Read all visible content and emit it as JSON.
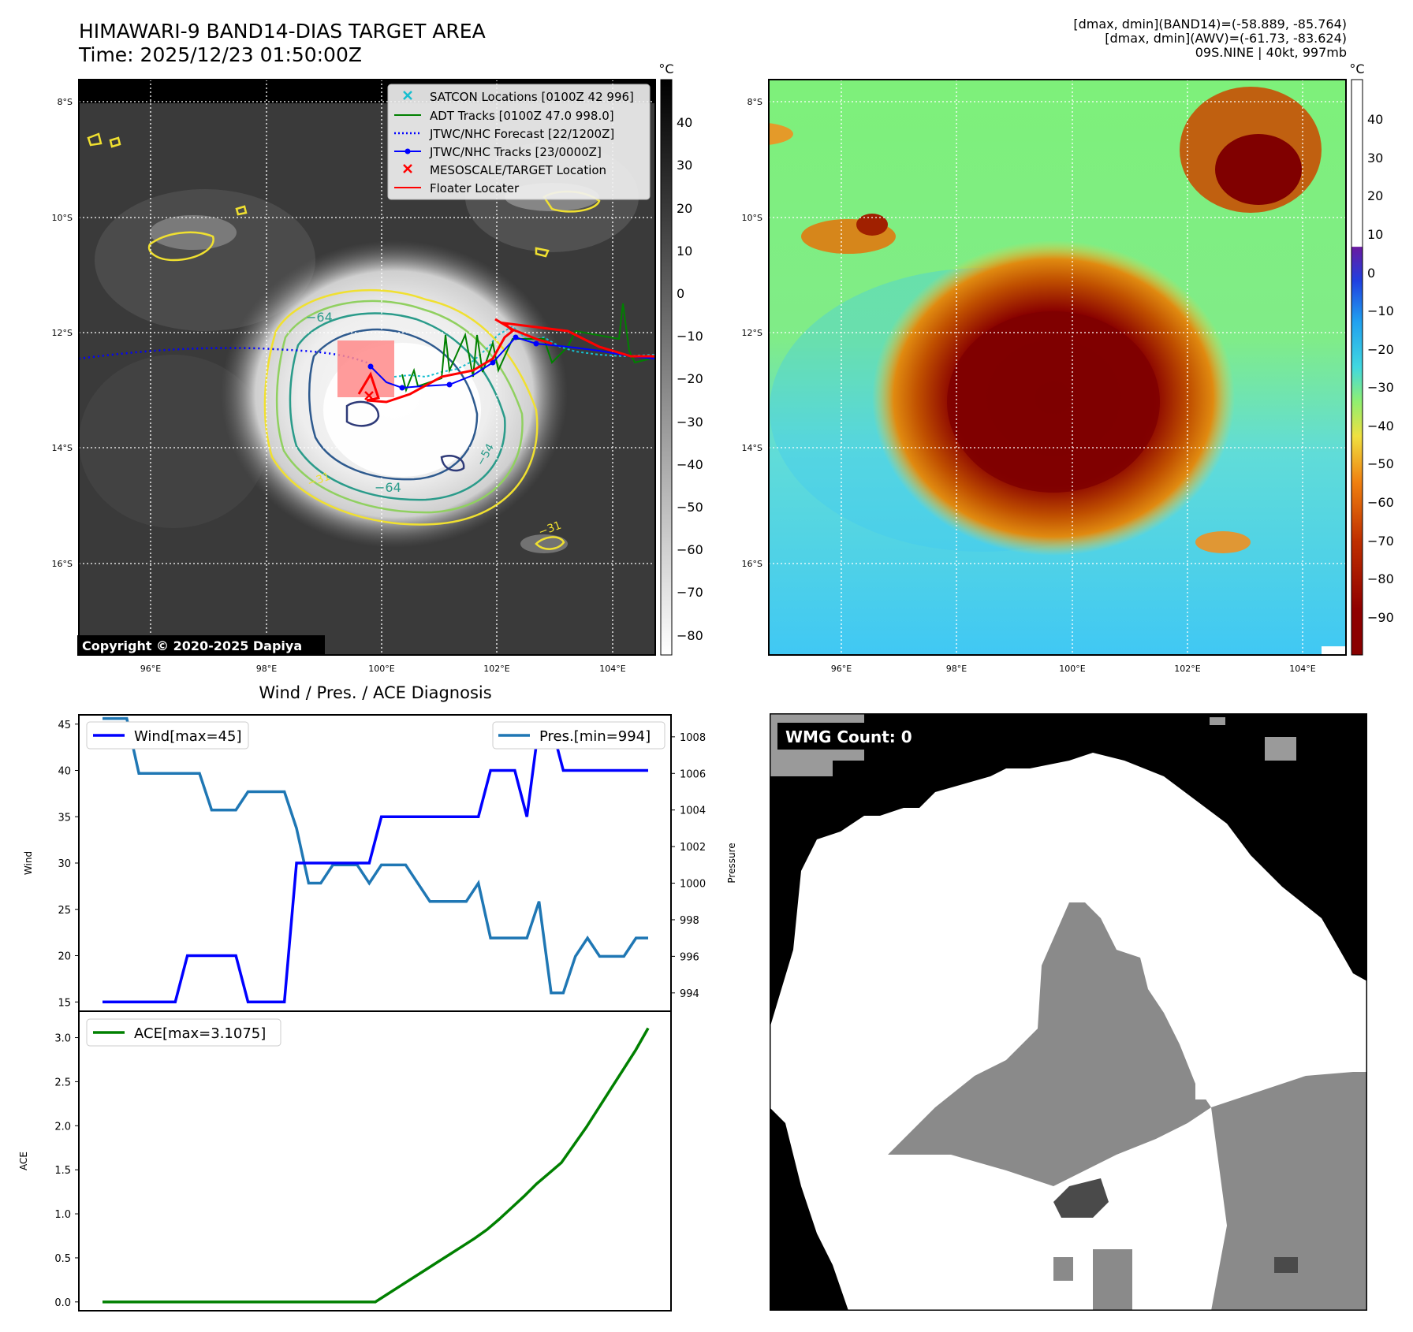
{
  "header": {
    "title_line1": "HIMAWARI-9 BAND14-DIAS TARGET AREA",
    "title_line2": "Time: 2025/12/23 01:50:00Z",
    "info_line1": "[dmax, dmin](BAND14)=(-58.889, -85.764)",
    "info_line2": "[dmax, dmin](AWV)=(-61.73, -83.624)",
    "info_line3": "09S.NINE | 40kt, 997mb"
  },
  "map": {
    "lat_labels": [
      "8°S",
      "10°S",
      "12°S",
      "14°S",
      "16°S"
    ],
    "lon_labels": [
      "96°E",
      "98°E",
      "100°E",
      "102°E",
      "104°E"
    ],
    "copyright": "Copyright © 2020-2025 Dapiya",
    "contour_labels": [
      "−64",
      "−64",
      "−54",
      "−31",
      "−31"
    ],
    "legend": [
      {
        "label": "SATCON Locations [0100Z 42 996]",
        "color": "#17becf",
        "marker": "x"
      },
      {
        "label": "ADT Tracks [0100Z 47.0 998.0]",
        "color": "#008000",
        "marker": "line"
      },
      {
        "label": "JTWC/NHC Forecast [22/1200Z]",
        "color": "#0000ff",
        "marker": "dotted"
      },
      {
        "label": "JTWC/NHC Tracks [23/0000Z]",
        "color": "#0000ff",
        "marker": "line-dot"
      },
      {
        "label": "MESOSCALE/TARGET Location",
        "color": "#ff0000",
        "marker": "x"
      },
      {
        "label": "Floater Locater",
        "color": "#ff0000",
        "marker": "line"
      }
    ]
  },
  "colorbar_gray": {
    "unit": "°C",
    "ticks": [
      "40",
      "30",
      "20",
      "10",
      "0",
      "−10",
      "−20",
      "−30",
      "−40",
      "−50",
      "−60",
      "−70",
      "−80"
    ]
  },
  "colorbar_color": {
    "unit": "°C",
    "ticks": [
      "40",
      "30",
      "20",
      "10",
      "0",
      "−10",
      "−20",
      "−30",
      "−40",
      "−50",
      "−60",
      "−70",
      "−80",
      "−90"
    ]
  },
  "wmg": {
    "label": "WMG Count: 0"
  },
  "chart_data": [
    {
      "type": "line",
      "title": "Wind / Pres. / ACE Diagnosis",
      "ylabel": "Wind",
      "ylabel_right": "Pressure",
      "ylim": [
        14,
        46
      ],
      "ylim_right": [
        993,
        1009.2
      ],
      "yticks": [
        "15",
        "20",
        "25",
        "30",
        "35",
        "40",
        "45"
      ],
      "yticks_right": [
        "994",
        "996",
        "998",
        "1000",
        "1002",
        "1004",
        "1006",
        "1008"
      ],
      "series": [
        {
          "name": "Wind[max=45]",
          "color": "#0000ff",
          "values": [
            15,
            15,
            15,
            15,
            15,
            15,
            15,
            20,
            20,
            20,
            20,
            20,
            15,
            15,
            15,
            15,
            30,
            30,
            30,
            30,
            30,
            30,
            30,
            35,
            35,
            35,
            35,
            35,
            35,
            35,
            35,
            35,
            40,
            40,
            40,
            35,
            45,
            45,
            40,
            40,
            40,
            40,
            40,
            40,
            40,
            40
          ]
        },
        {
          "name": "Pres.[min=994]",
          "color": "#1f77b4",
          "axis": "right",
          "values": [
            1009,
            1009,
            1009,
            1006,
            1006,
            1006,
            1006,
            1006,
            1006,
            1004,
            1004,
            1004,
            1005,
            1005,
            1005,
            1005,
            1003,
            1000,
            1000,
            1001,
            1001,
            1001,
            1000,
            1001,
            1001,
            1001,
            1000,
            999,
            999,
            999,
            999,
            1000,
            997,
            997,
            997,
            997,
            999,
            994,
            994,
            996,
            997,
            996,
            996,
            996,
            997,
            997
          ]
        }
      ]
    },
    {
      "type": "line",
      "ylabel": "ACE",
      "ylim": [
        -0.1,
        3.3
      ],
      "yticks": [
        "0.0",
        "0.5",
        "1.0",
        "1.5",
        "2.0",
        "2.5",
        "3.0"
      ],
      "series": [
        {
          "name": "ACE[max=3.1075]",
          "color": "#008000",
          "values": [
            0,
            0,
            0,
            0,
            0,
            0,
            0,
            0,
            0,
            0,
            0,
            0,
            0,
            0,
            0,
            0,
            0,
            0,
            0,
            0,
            0,
            0,
            0,
            0.09,
            0.18,
            0.27,
            0.36,
            0.45,
            0.54,
            0.63,
            0.72,
            0.82,
            0.94,
            1.07,
            1.2,
            1.34,
            1.46,
            1.58,
            1.78,
            1.98,
            2.2,
            2.42,
            2.64,
            2.86,
            3.1075
          ]
        }
      ]
    }
  ]
}
